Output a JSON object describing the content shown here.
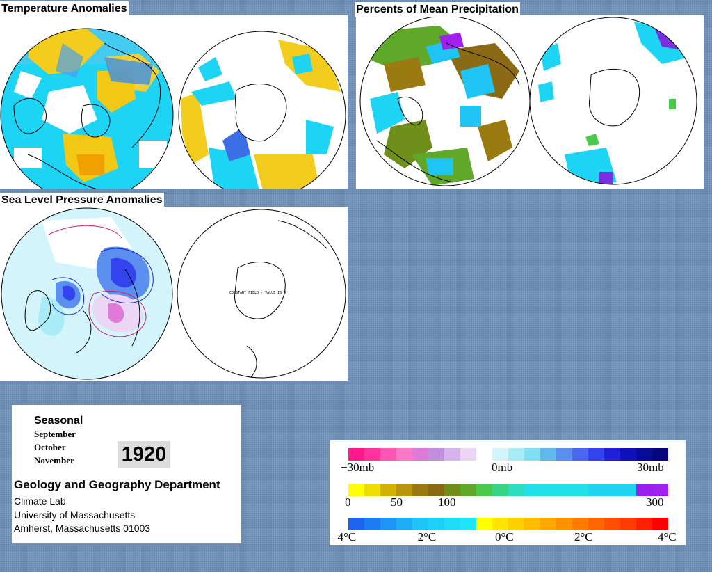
{
  "titles": {
    "temperature": "Temperature Anomalies",
    "precipitation": "Percents of Mean Precipitation",
    "pressure": "Sea Level Pressure Anomalies"
  },
  "constant_field_label": "CONSTANT FIELD - VALUE IS 0",
  "info": {
    "season": "Seasonal",
    "months": [
      "September",
      "October",
      "November"
    ],
    "year": "1920",
    "department": "Geology and Geography Department",
    "address_lines": [
      "Climate Lab",
      "University of Massachusetts",
      "Amherst, Massachusetts 01003"
    ]
  },
  "legend": {
    "pressure": {
      "labels": [
        "−30mb",
        "0mb",
        "30mb"
      ],
      "colors": [
        "#ff1a8c",
        "#ff33a0",
        "#ff55b5",
        "#ff77c8",
        "#e07ad8",
        "#c48ee0",
        "#d8b4ee",
        "#ecd6f6",
        "#ffffff",
        "#d2f4fa",
        "#a9ebf6",
        "#7fe0f3",
        "#5fb8ee",
        "#5a8ff0",
        "#4a67f0",
        "#3344ee",
        "#1f1fd8",
        "#1010b8",
        "#0a0a98",
        "#060680"
      ]
    },
    "precipitation": {
      "labels": [
        "0",
        "50",
        "100",
        "300"
      ],
      "colors": [
        "#ffff00",
        "#f0de00",
        "#d4b100",
        "#b9930a",
        "#9b7a12",
        "#8a6a14",
        "#6f8f1a",
        "#5fa82a",
        "#4cc84a",
        "#36d484",
        "#2edcc0",
        "#20e0e8",
        "#20e0e8",
        "#20e0e8",
        "#20e0e8",
        "#20d4f0",
        "#20d4f0",
        "#20d4f0",
        "#9a20f0",
        "#a020f0"
      ]
    },
    "temperature": {
      "labels": [
        "−4°C",
        "−2°C",
        "0°C",
        "2°C",
        "4°C"
      ],
      "colors": [
        "#1e64f0",
        "#1e7cf2",
        "#1e94f4",
        "#1eacf6",
        "#1ec4f8",
        "#1ed0f8",
        "#1edcf8",
        "#1ee6f8",
        "#ffff00",
        "#ffe400",
        "#ffd000",
        "#ffbc00",
        "#ffa800",
        "#ff9200",
        "#ff7c00",
        "#ff6600",
        "#ff4e00",
        "#ff3a00",
        "#ff2000",
        "#ff0000"
      ]
    }
  }
}
